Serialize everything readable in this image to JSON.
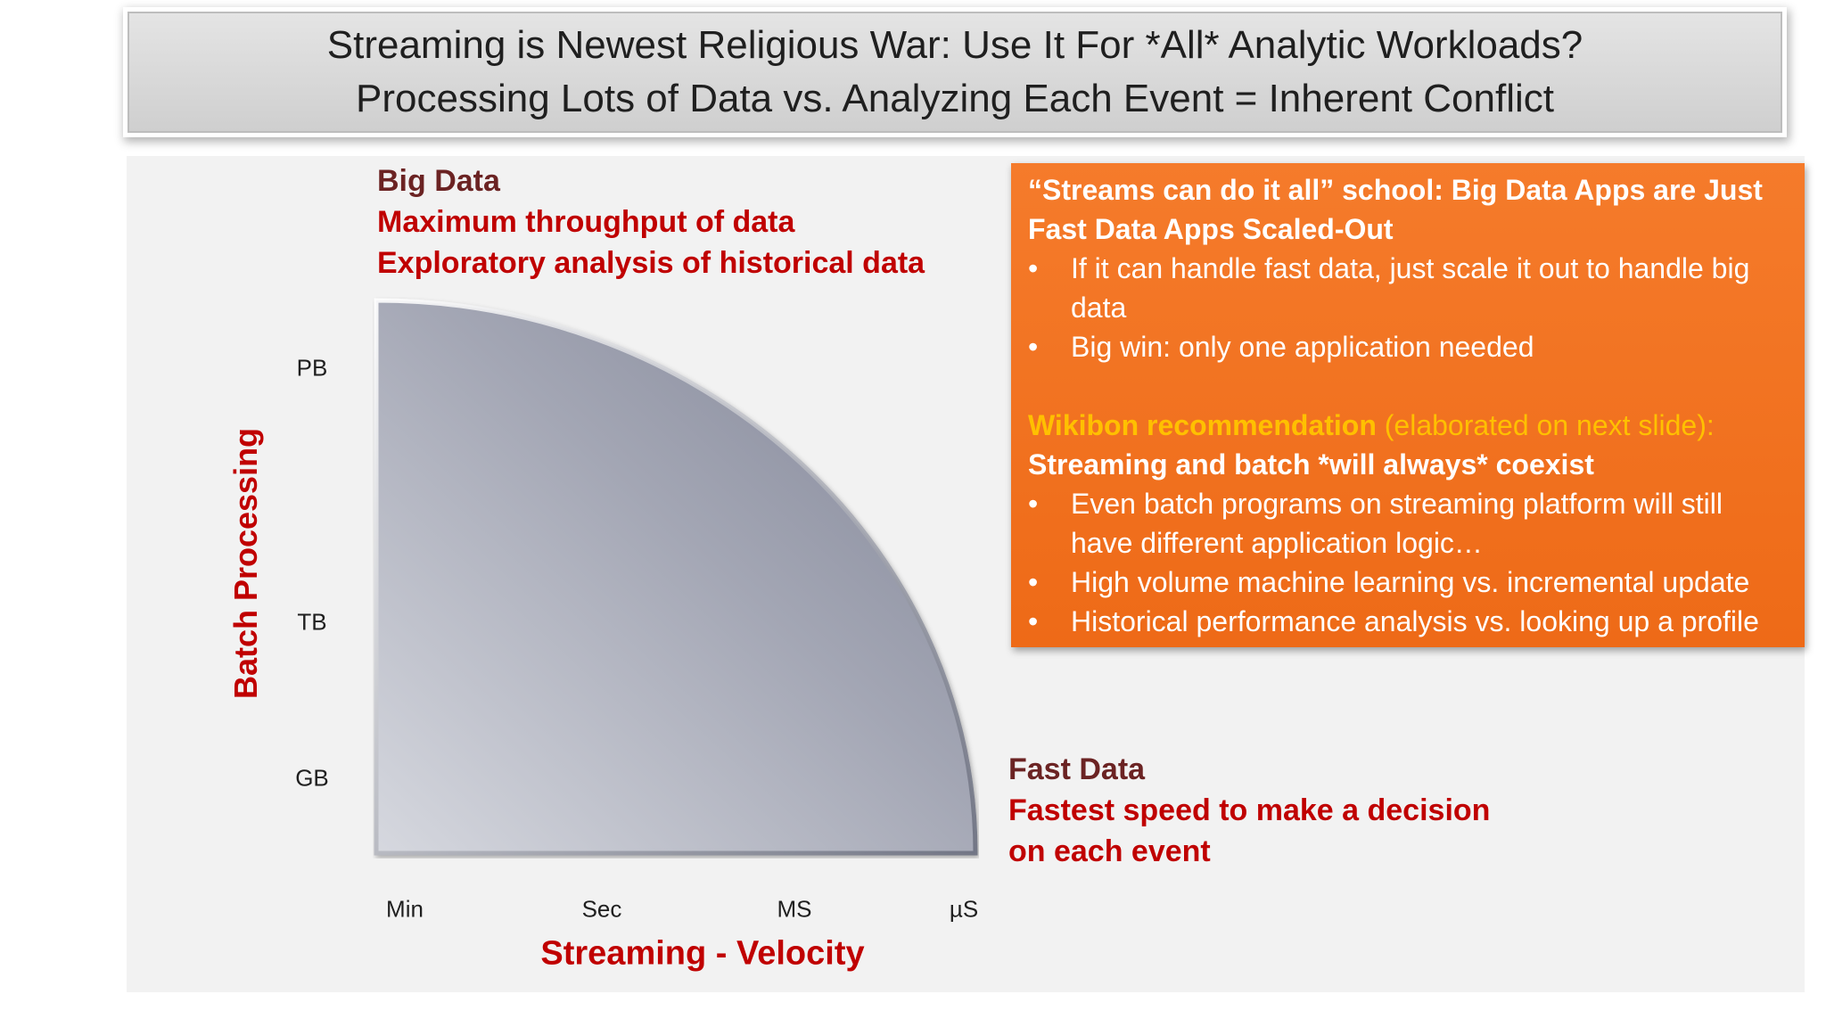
{
  "title": {
    "line1": "Streaming is Newest Religious War: Use It For *All* Analytic Workloads?",
    "line2": "Processing Lots of Data vs. Analyzing Each Event = Inherent Conflict"
  },
  "big_data": {
    "heading": "Big Data",
    "line1": "Maximum throughput of data",
    "line2": "Exploratory analysis of historical data"
  },
  "fast_data": {
    "heading": "Fast Data",
    "line1": "Fastest speed to make a decision",
    "line2": "on each event"
  },
  "y_axis": {
    "title": "Batch Processing",
    "ticks": [
      "PB",
      "TB",
      "GB"
    ]
  },
  "x_axis": {
    "title": "Streaming - Velocity",
    "ticks": [
      "Min",
      "Sec",
      "MS",
      "µS"
    ]
  },
  "streams_box": {
    "heading": "“Streams can do it all” school: Big Data Apps are Just Fast Data Apps Scaled-Out",
    "bullets": [
      "If it can handle fast data, just scale it out to handle big data",
      "Big win: only one application needed"
    ],
    "rec_heading": "Wikibon recommendation",
    "rec_note": " (elaborated on next slide):",
    "rec_subheading": "Streaming and batch *will always* coexist",
    "rec_bullets": [
      "Even batch programs on streaming platform will still have different application logic…",
      "High volume machine learning vs. incremental update",
      "Historical performance analysis vs. looking up a profile"
    ]
  },
  "colors": {
    "accent_red": "#c00000",
    "dark_red": "#6b2323",
    "orange_box": "#f07020",
    "recommendation": "#ffc000"
  }
}
